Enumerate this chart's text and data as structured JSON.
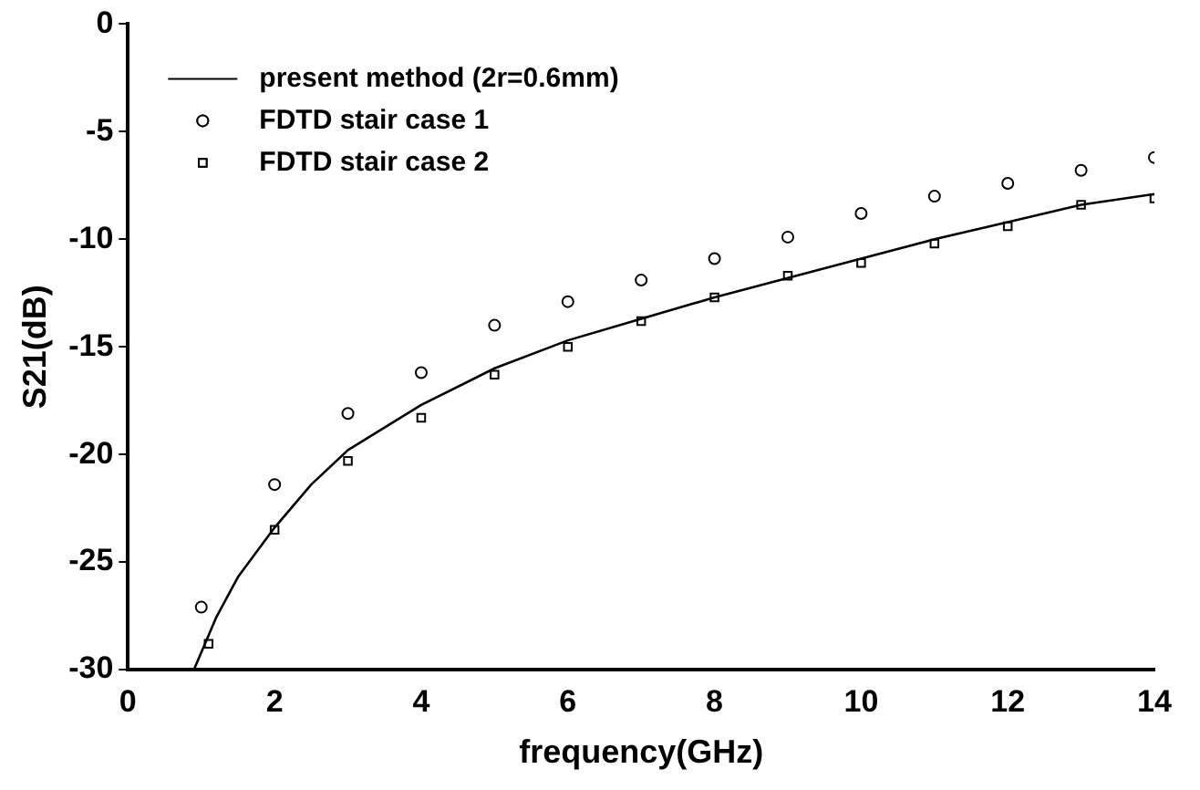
{
  "chart_data": {
    "type": "line",
    "xlabel": "frequency(GHz)",
    "ylabel": "S21(dB)",
    "xlim": [
      0,
      14
    ],
    "ylim": [
      -30,
      0
    ],
    "xticks": [
      0,
      2,
      4,
      6,
      8,
      10,
      12,
      14
    ],
    "yticks": [
      -30,
      -25,
      -20,
      -15,
      -10,
      -5,
      0
    ],
    "grid": false,
    "legend": "top left",
    "series": [
      {
        "name": "present method (2r=0.6mm)",
        "type": "line",
        "marker": "none",
        "color": "#000000",
        "x": [
          0.9,
          1.2,
          1.5,
          2,
          2.5,
          3,
          4,
          5,
          6,
          7,
          8,
          9,
          10,
          11,
          12,
          13,
          14
        ],
        "values": [
          -30,
          -27.6,
          -25.7,
          -23.4,
          -21.4,
          -19.8,
          -17.7,
          -16.0,
          -14.7,
          -13.7,
          -12.7,
          -11.8,
          -10.9,
          -10.0,
          -9.2,
          -8.4,
          -7.9
        ]
      },
      {
        "name": "FDTD stair case 1",
        "type": "scatter",
        "marker": "circle",
        "color": "#000000",
        "x": [
          1,
          2,
          3,
          4,
          5,
          6,
          7,
          8,
          9,
          10,
          11,
          12,
          13,
          14
        ],
        "values": [
          -27.1,
          -21.4,
          -18.1,
          -16.2,
          -14.0,
          -12.9,
          -11.9,
          -10.9,
          -9.9,
          -8.8,
          -8.0,
          -7.4,
          -6.8,
          -6.2
        ]
      },
      {
        "name": "FDTD stair case 2",
        "type": "scatter",
        "marker": "square",
        "color": "#000000",
        "x": [
          1.1,
          2,
          3,
          4,
          5,
          6,
          7,
          8,
          9,
          10,
          11,
          12,
          13,
          14
        ],
        "values": [
          -28.8,
          -23.5,
          -20.3,
          -18.3,
          -16.3,
          -15.0,
          -13.8,
          -12.7,
          -11.7,
          -11.1,
          -10.2,
          -9.4,
          -8.4,
          -8.1
        ]
      }
    ]
  }
}
